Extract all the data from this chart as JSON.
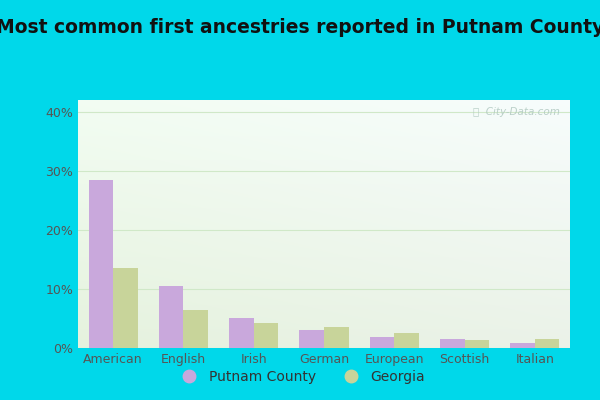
{
  "title": "Most common first ancestries reported in Putnam County",
  "categories": [
    "American",
    "English",
    "Irish",
    "German",
    "European",
    "Scottish",
    "Italian"
  ],
  "putnam_values": [
    28.5,
    10.5,
    5.0,
    3.0,
    1.8,
    1.5,
    0.9
  ],
  "georgia_values": [
    13.5,
    6.5,
    4.3,
    3.5,
    2.5,
    1.4,
    1.5
  ],
  "putnam_color": "#c9a8dc",
  "georgia_color": "#c8d49a",
  "ylim": [
    0,
    42
  ],
  "yticks": [
    0,
    10,
    20,
    30,
    40
  ],
  "ytick_labels": [
    "0%",
    "10%",
    "20%",
    "30%",
    "40%"
  ],
  "bar_width": 0.35,
  "background_outer": "#00d8ea",
  "background_inner_topleft": "#eaf7ea",
  "background_inner_topright": "#f8fef8",
  "background_inner_bottom": "#d4eccc",
  "title_fontsize": 13.5,
  "legend_label_putnam": "Putnam County",
  "legend_label_georgia": "Georgia",
  "watermark": "ⓘ  City-Data.com",
  "grid_color": "#d0e8c8",
  "tick_color": "#555555",
  "tick_fontsize": 9
}
